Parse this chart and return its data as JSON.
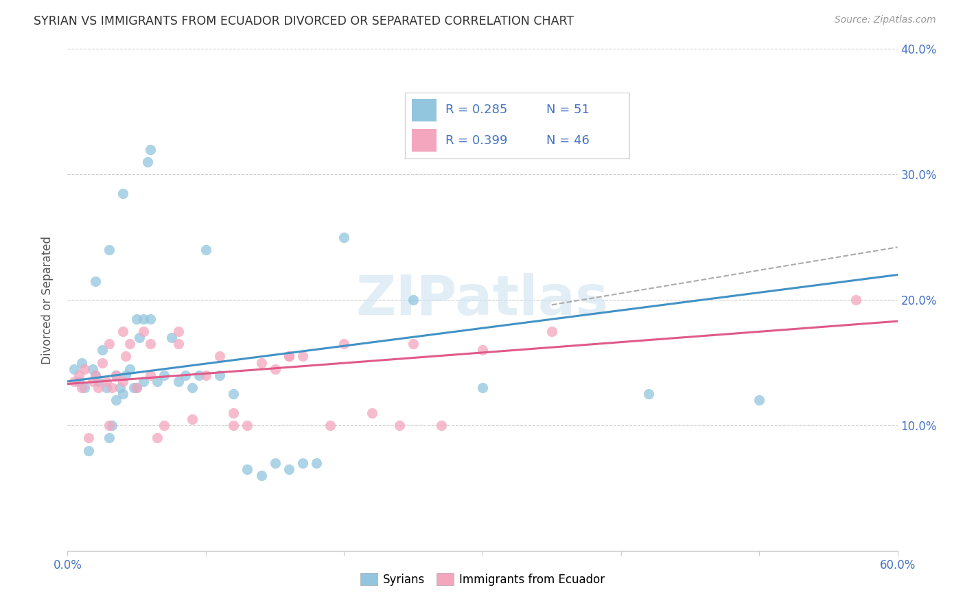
{
  "title": "SYRIAN VS IMMIGRANTS FROM ECUADOR DIVORCED OR SEPARATED CORRELATION CHART",
  "source": "Source: ZipAtlas.com",
  "ylabel": "Divorced or Separated",
  "legend_labels": [
    "Syrians",
    "Immigrants from Ecuador"
  ],
  "legend_r": [
    "R = 0.285",
    "R = 0.399"
  ],
  "legend_n": [
    "N = 51",
    "N = 46"
  ],
  "blue_color": "#92c5de",
  "pink_color": "#f4a6be",
  "blue_line_color": "#4292c6",
  "pink_line_color": "#e05a8a",
  "dashed_line_color": "#aaaaaa",
  "watermark_color": "#d0e4f0",
  "xlim": [
    0.0,
    0.6
  ],
  "ylim": [
    0.0,
    0.4
  ],
  "xticks": [
    0.0,
    0.1,
    0.2,
    0.3,
    0.4,
    0.5,
    0.6
  ],
  "xtick_labels": [
    "0.0%",
    "",
    "",
    "",
    "",
    "",
    "60.0%"
  ],
  "yticks_right": [
    0.1,
    0.2,
    0.3,
    0.4
  ],
  "ytick_labels_right": [
    "10.0%",
    "20.0%",
    "30.0%",
    "40.0%"
  ],
  "syrian_x": [
    0.005,
    0.008,
    0.01,
    0.012,
    0.015,
    0.018,
    0.02,
    0.022,
    0.025,
    0.028,
    0.03,
    0.032,
    0.035,
    0.038,
    0.04,
    0.042,
    0.045,
    0.048,
    0.05,
    0.052,
    0.055,
    0.058,
    0.06,
    0.065,
    0.07,
    0.075,
    0.08,
    0.085,
    0.09,
    0.095,
    0.1,
    0.11,
    0.12,
    0.13,
    0.14,
    0.15,
    0.16,
    0.17,
    0.18,
    0.2,
    0.25,
    0.3,
    0.02,
    0.03,
    0.04,
    0.05,
    0.06,
    0.035,
    0.055,
    0.42,
    0.5
  ],
  "syrian_y": [
    0.145,
    0.135,
    0.15,
    0.13,
    0.08,
    0.145,
    0.14,
    0.135,
    0.16,
    0.13,
    0.09,
    0.1,
    0.12,
    0.13,
    0.125,
    0.14,
    0.145,
    0.13,
    0.13,
    0.17,
    0.185,
    0.31,
    0.32,
    0.135,
    0.14,
    0.17,
    0.135,
    0.14,
    0.13,
    0.14,
    0.24,
    0.14,
    0.125,
    0.065,
    0.06,
    0.07,
    0.065,
    0.07,
    0.07,
    0.25,
    0.2,
    0.13,
    0.215,
    0.24,
    0.285,
    0.185,
    0.185,
    0.14,
    0.135,
    0.125,
    0.12
  ],
  "ecuador_x": [
    0.005,
    0.008,
    0.01,
    0.012,
    0.015,
    0.018,
    0.02,
    0.022,
    0.025,
    0.028,
    0.03,
    0.032,
    0.035,
    0.04,
    0.042,
    0.045,
    0.05,
    0.055,
    0.06,
    0.065,
    0.07,
    0.08,
    0.09,
    0.1,
    0.11,
    0.12,
    0.13,
    0.14,
    0.15,
    0.16,
    0.17,
    0.19,
    0.2,
    0.22,
    0.24,
    0.25,
    0.27,
    0.3,
    0.35,
    0.03,
    0.04,
    0.06,
    0.08,
    0.12,
    0.16,
    0.57
  ],
  "ecuador_y": [
    0.135,
    0.14,
    0.13,
    0.145,
    0.09,
    0.135,
    0.14,
    0.13,
    0.15,
    0.135,
    0.1,
    0.13,
    0.14,
    0.135,
    0.155,
    0.165,
    0.13,
    0.175,
    0.14,
    0.09,
    0.1,
    0.165,
    0.105,
    0.14,
    0.155,
    0.11,
    0.1,
    0.15,
    0.145,
    0.155,
    0.155,
    0.1,
    0.165,
    0.11,
    0.1,
    0.165,
    0.1,
    0.16,
    0.175,
    0.165,
    0.175,
    0.165,
    0.175,
    0.1,
    0.155,
    0.2
  ],
  "blue_trend_x": [
    0.0,
    0.6
  ],
  "blue_trend_y": [
    0.135,
    0.22
  ],
  "pink_trend_x": [
    0.0,
    0.6
  ],
  "pink_trend_y": [
    0.133,
    0.183
  ],
  "dashed_trend_x": [
    0.35,
    0.6
  ],
  "dashed_trend_y": [
    0.196,
    0.242
  ]
}
